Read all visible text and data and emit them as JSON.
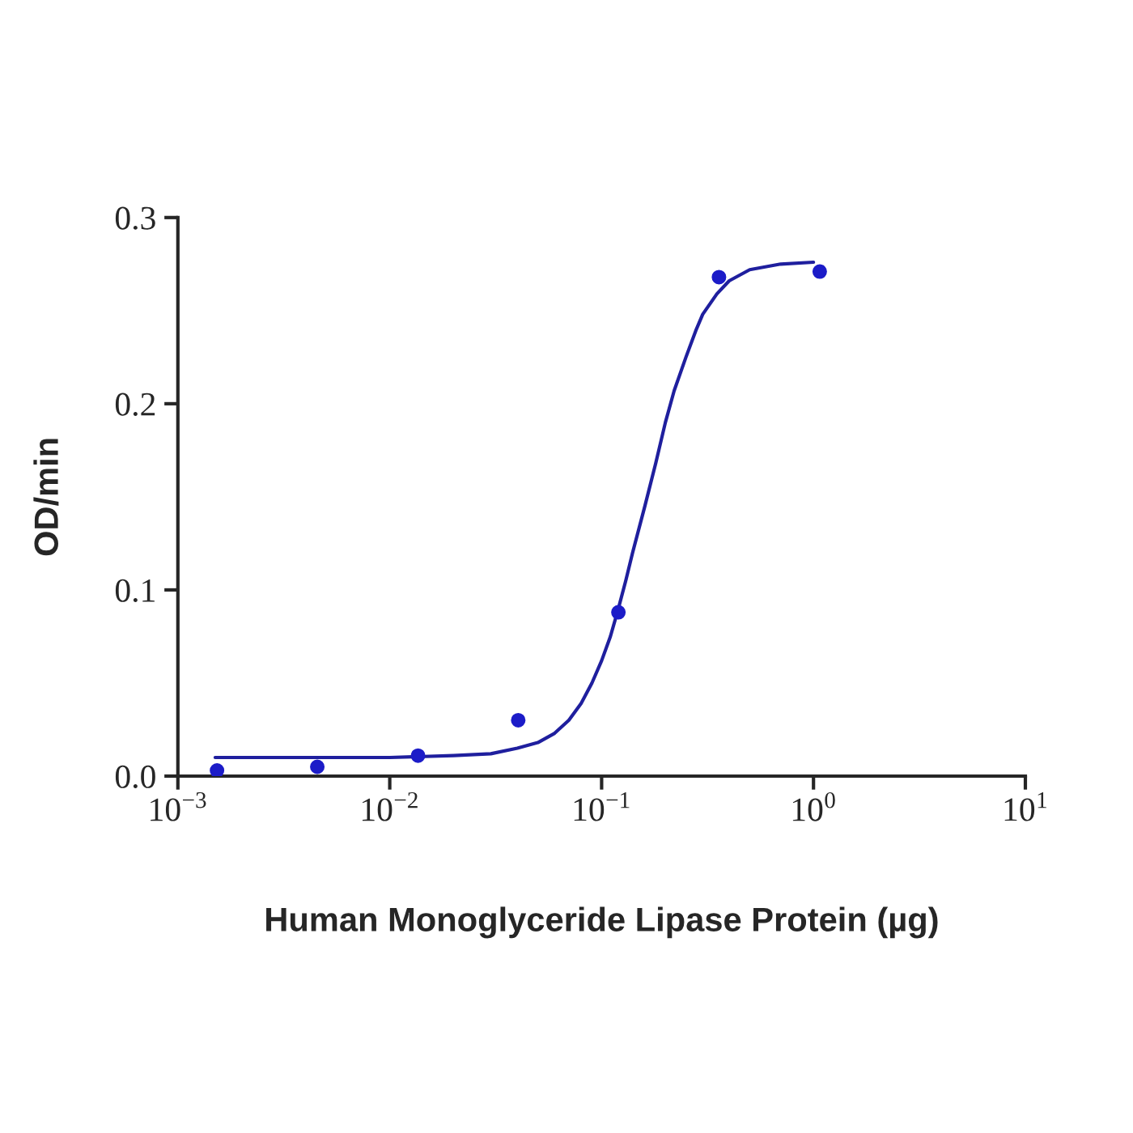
{
  "chart_data": {
    "type": "scatter",
    "xlabel": "Human Monoglyceride Lipase Protein (µg)",
    "ylabel": "OD/min",
    "log": "x",
    "grid": false,
    "xlim": [
      0.001,
      10
    ],
    "ylim": [
      0,
      0.3
    ],
    "xticks": [
      {
        "value": 0.001,
        "label": "10$^{−3}$"
      },
      {
        "value": 0.01,
        "label": "10$^{−2}$"
      },
      {
        "value": 0.1,
        "label": "10$^{−1}$"
      },
      {
        "value": 1,
        "label": "10$^{0}$"
      },
      {
        "value": 10,
        "label": "10$^{1}$"
      }
    ],
    "yticks": [
      {
        "value": 0,
        "label": "0.0"
      },
      {
        "value": 0.1,
        "label": "0.1"
      },
      {
        "value": 0.2,
        "label": "0.2"
      },
      {
        "value": 0.3,
        "label": "0.3"
      }
    ],
    "series": [
      {
        "color": "#1c1cc8",
        "marker": "circle",
        "x": [
          0.00153,
          0.00455,
          0.0136,
          0.0404,
          0.12,
          0.358,
          1.07
        ],
        "values": [
          0.003,
          0.005,
          0.011,
          0.03,
          0.088,
          0.268,
          0.271
        ]
      },
      {
        "type": "line",
        "color": "#1f1f9e",
        "marker": "none",
        "x": [
          0.0015,
          0.01,
          0.02,
          0.03,
          0.04,
          0.05,
          0.06,
          0.07,
          0.08,
          0.09,
          0.1,
          0.11,
          0.12,
          0.13,
          0.14,
          0.16,
          0.18,
          0.2,
          0.22,
          0.25,
          0.28,
          0.3,
          0.35,
          0.4,
          0.5,
          0.7,
          1.0
        ],
        "values": [
          0.01,
          0.01,
          0.011,
          0.012,
          0.015,
          0.018,
          0.023,
          0.03,
          0.039,
          0.05,
          0.062,
          0.075,
          0.09,
          0.105,
          0.12,
          0.145,
          0.168,
          0.19,
          0.207,
          0.225,
          0.24,
          0.248,
          0.259,
          0.266,
          0.272,
          0.275,
          0.276
        ]
      }
    ]
  }
}
